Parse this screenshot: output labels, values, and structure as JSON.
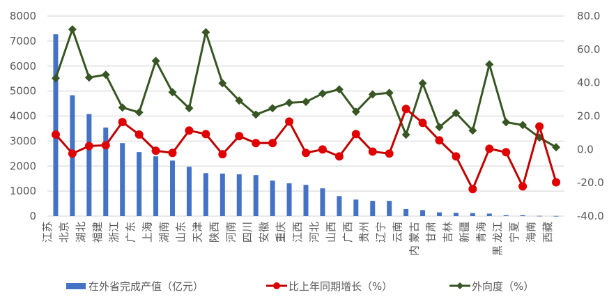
{
  "chart_data": {
    "type": "bar",
    "title": "",
    "xlabel": "",
    "ylabel": "",
    "categories": [
      "江苏",
      "北京",
      "湖北",
      "福建",
      "浙江",
      "广东",
      "上海",
      "湖南",
      "山东",
      "天津",
      "陕西",
      "河南",
      "四川",
      "安徽",
      "重庆",
      "江西",
      "河北",
      "山西",
      "广西",
      "贵州",
      "辽宁",
      "云南",
      "内蒙古",
      "甘肃",
      "吉林",
      "新疆",
      "青海",
      "黑龙江",
      "宁夏",
      "海南",
      "西藏"
    ],
    "series": [
      {
        "name": "在外省完成产值（亿元）",
        "type": "bar",
        "axis": "left",
        "color": "#4472C4",
        "values": [
          7270,
          4830,
          4080,
          3540,
          2920,
          2560,
          2390,
          2220,
          1970,
          1720,
          1700,
          1670,
          1640,
          1420,
          1310,
          1250,
          1110,
          800,
          660,
          610,
          610,
          280,
          240,
          150,
          130,
          120,
          100,
          40,
          40,
          10,
          5
        ]
      },
      {
        "name": "比上年同期增长（%）",
        "type": "line",
        "axis": "right",
        "color": "#C00000",
        "marker": "circle",
        "marker_color": "#E00000",
        "values": [
          8.9,
          -2.5,
          2.0,
          2.5,
          16.4,
          8.9,
          -0.8,
          -2.1,
          11.3,
          9.2,
          -2.9,
          8.0,
          3.8,
          3.8,
          16.7,
          -2.1,
          0.0,
          -4.2,
          9.2,
          -1.3,
          -2.5,
          24.3,
          15.9,
          5.4,
          -4.2,
          -23.8,
          0.4,
          -1.7,
          -22.2,
          13.8,
          -19.7
        ]
      },
      {
        "name": "外向度（%）",
        "type": "line",
        "axis": "right",
        "color": "#375623",
        "marker": "diamond",
        "values": [
          42.7,
          72.0,
          43.1,
          44.8,
          25.1,
          22.2,
          53.1,
          34.3,
          24.7,
          70.3,
          39.7,
          29.3,
          20.9,
          24.7,
          28.0,
          28.5,
          33.5,
          36.0,
          22.6,
          33.0,
          33.9,
          8.8,
          39.7,
          13.4,
          21.8,
          11.3,
          51.0,
          16.3,
          14.6,
          7.1,
          1.3
        ]
      }
    ],
    "left_axis": {
      "ylim": [
        0,
        8000
      ],
      "ticks": [
        "0",
        "1000",
        "2000",
        "3000",
        "4000",
        "5000",
        "6000",
        "7000",
        "8000"
      ]
    },
    "right_axis": {
      "ylim": [
        -40,
        80
      ],
      "ticks": [
        "-40.0",
        "-20.0",
        "0.0",
        "20.0",
        "40.0",
        "60.0",
        "80.0"
      ]
    },
    "grid": true,
    "legend_position": "bottom"
  },
  "legend": {
    "items": [
      {
        "label": "在外省完成产值（亿元）"
      },
      {
        "label": "比上年同期增长（%）"
      },
      {
        "label": "外向度（%）"
      }
    ]
  }
}
